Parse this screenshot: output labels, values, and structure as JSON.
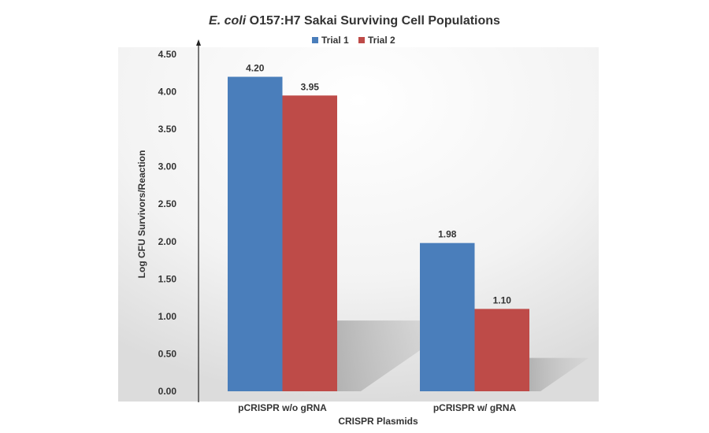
{
  "chart_data": {
    "type": "bar",
    "title_italic": "E. coli",
    "title_rest": " O157:H7 Sakai Surviving Cell Populations",
    "xlabel": "CRISPR Plasmids",
    "ylabel": "Log CFU Survivors/Reaction",
    "categories": [
      "pCRISPR w/o gRNA",
      "pCRISPR w/ gRNA"
    ],
    "series": [
      {
        "name": "Trial 1",
        "values": [
          4.2,
          1.98
        ],
        "labels": [
          "4.20",
          "1.98"
        ],
        "color": "#4a7ebb"
      },
      {
        "name": "Trial 2",
        "values": [
          3.95,
          1.1
        ],
        "labels": [
          "3.95",
          "1.10"
        ],
        "color": "#be4b48"
      }
    ],
    "ylim": [
      0,
      4.5
    ],
    "yticks": [
      "0.00",
      "0.50",
      "1.00",
      "1.50",
      "2.00",
      "2.50",
      "3.00",
      "3.50",
      "4.00",
      "4.50"
    ],
    "grid": false,
    "legend": "top"
  }
}
